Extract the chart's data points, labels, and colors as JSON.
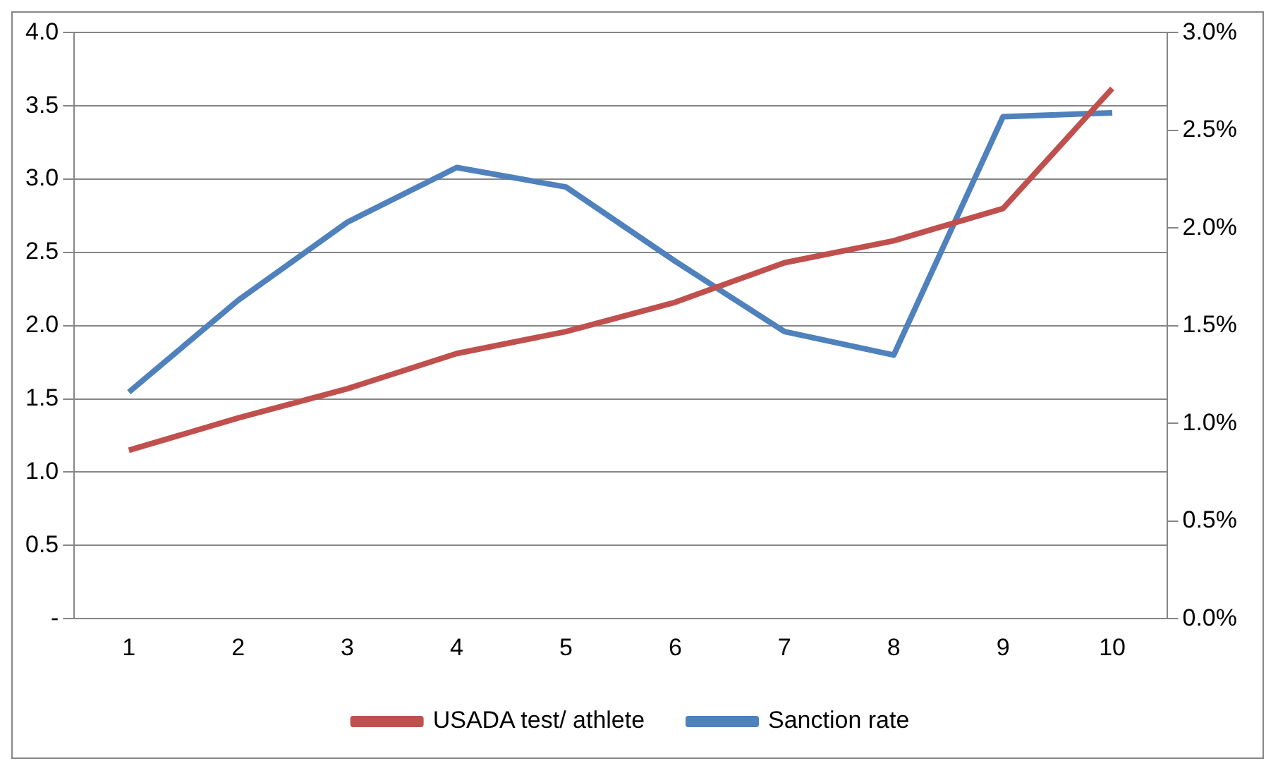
{
  "chart_data": {
    "type": "line",
    "categories": [
      "1",
      "2",
      "3",
      "4",
      "5",
      "6",
      "7",
      "8",
      "9",
      "10"
    ],
    "series": [
      {
        "name": "USADA test/ athlete",
        "color": "#c0504d",
        "values": [
          1.15,
          1.37,
          1.57,
          1.81,
          1.96,
          2.16,
          2.43,
          2.58,
          2.8,
          3.62
        ]
      },
      {
        "name": "Sanction rate",
        "color": "#4f81bd",
        "axis": "y2",
        "values": [
          1.16,
          1.63,
          2.03,
          2.31,
          2.21,
          1.83,
          1.47,
          1.35,
          2.57,
          2.59
        ]
      }
    ],
    "ylim": [
      0,
      4
    ],
    "yticks": [
      {
        "value": 0,
        "label": "-"
      },
      {
        "value": 0.5,
        "label": "0.5"
      },
      {
        "value": 1,
        "label": "1.0"
      },
      {
        "value": 1.5,
        "label": "1.5"
      },
      {
        "value": 2,
        "label": "2.0"
      },
      {
        "value": 2.5,
        "label": "2.5"
      },
      {
        "value": 3,
        "label": "3.0"
      },
      {
        "value": 3.5,
        "label": "3.5"
      },
      {
        "value": 4,
        "label": "4.0"
      }
    ],
    "y2lim": [
      0,
      3
    ],
    "y2ticks": [
      {
        "value": 0,
        "label": "0.0%"
      },
      {
        "value": 0.5,
        "label": "0.5%"
      },
      {
        "value": 1,
        "label": "1.0%"
      },
      {
        "value": 1.5,
        "label": "1.5%"
      },
      {
        "value": 2,
        "label": "2.0%"
      },
      {
        "value": 2.5,
        "label": "2.5%"
      },
      {
        "value": 3,
        "label": "3.0%"
      }
    ],
    "grid": "y",
    "legend": "bottom",
    "marker": "none",
    "line_style": "solid"
  }
}
